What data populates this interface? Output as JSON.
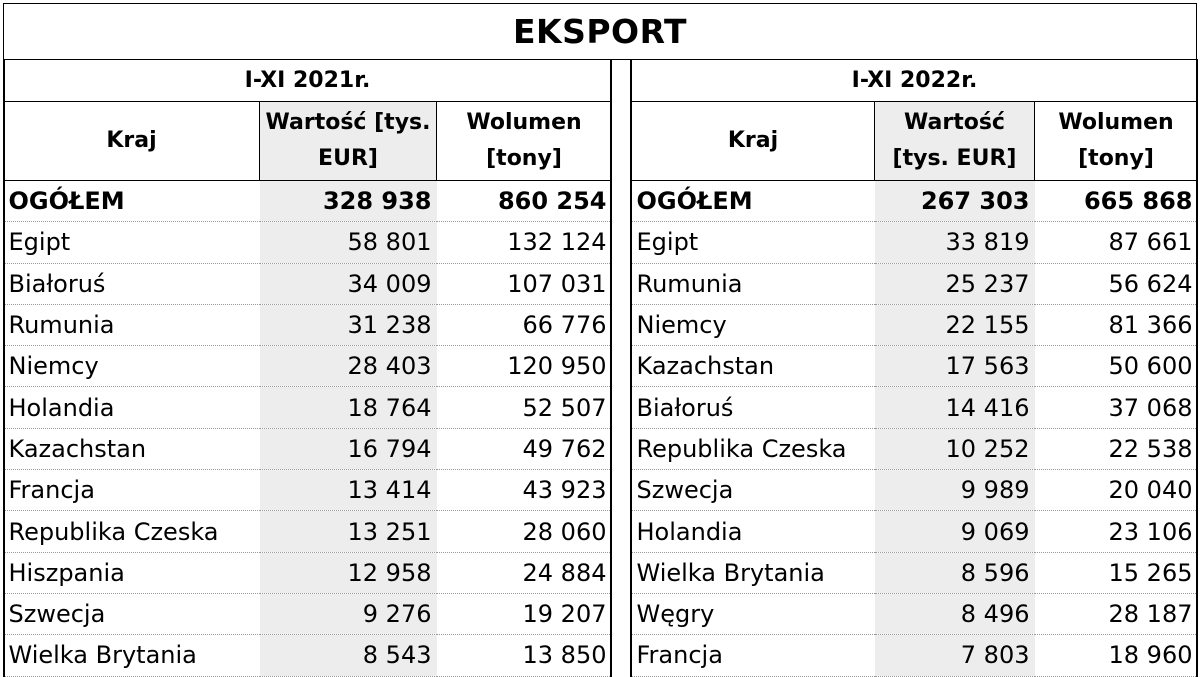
{
  "title": "EKSPORT",
  "left": {
    "period": "I-XI 2021r.",
    "headers": {
      "country": "Kraj",
      "value": "Wartość [tys. EUR]",
      "volume": "Wolumen [tony]"
    },
    "rows": [
      {
        "country": "OGÓŁEM",
        "value": "328 938",
        "volume": "860 254"
      },
      {
        "country": "Egipt",
        "value": "58 801",
        "volume": "132 124"
      },
      {
        "country": "Białoruś",
        "value": "34 009",
        "volume": "107 031"
      },
      {
        "country": "Rumunia",
        "value": "31 238",
        "volume": "66 776"
      },
      {
        "country": "Niemcy",
        "value": "28 403",
        "volume": "120 950"
      },
      {
        "country": "Holandia",
        "value": "18 764",
        "volume": "52 507"
      },
      {
        "country": "Kazachstan",
        "value": "16 794",
        "volume": "49 762"
      },
      {
        "country": "Francja",
        "value": "13 414",
        "volume": "43 923"
      },
      {
        "country": "Republika Czeska",
        "value": "13 251",
        "volume": "28 060"
      },
      {
        "country": "Hiszpania",
        "value": "12 958",
        "volume": "24 884"
      },
      {
        "country": "Szwecja",
        "value": "9 276",
        "volume": "19 207"
      },
      {
        "country": "Wielka Brytania",
        "value": "8 543",
        "volume": "13 850"
      }
    ]
  },
  "right": {
    "period": "I-XI 2022r.",
    "headers": {
      "country": "Kraj",
      "value": "Wartość [tys. EUR]",
      "volume": "Wolumen [tony]"
    },
    "rows": [
      {
        "country": "OGÓŁEM",
        "value": "267 303",
        "volume": "665 868"
      },
      {
        "country": "Egipt",
        "value": "33 819",
        "volume": "87 661"
      },
      {
        "country": "Rumunia",
        "value": "25 237",
        "volume": "56 624"
      },
      {
        "country": "Niemcy",
        "value": "22 155",
        "volume": "81 366"
      },
      {
        "country": "Kazachstan",
        "value": "17 563",
        "volume": "50 600"
      },
      {
        "country": "Białoruś",
        "value": "14 416",
        "volume": "37 068"
      },
      {
        "country": "Republika Czeska",
        "value": "10 252",
        "volume": "22 538"
      },
      {
        "country": "Szwecja",
        "value": "9 989",
        "volume": "20 040"
      },
      {
        "country": "Holandia",
        "value": "9 069",
        "volume": "23 106"
      },
      {
        "country": "Wielka Brytania",
        "value": "8 596",
        "volume": "15 265"
      },
      {
        "country": "Węgry",
        "value": "8 496",
        "volume": "28 187"
      },
      {
        "country": "Francja",
        "value": "7 803",
        "volume": "18 960"
      }
    ]
  }
}
